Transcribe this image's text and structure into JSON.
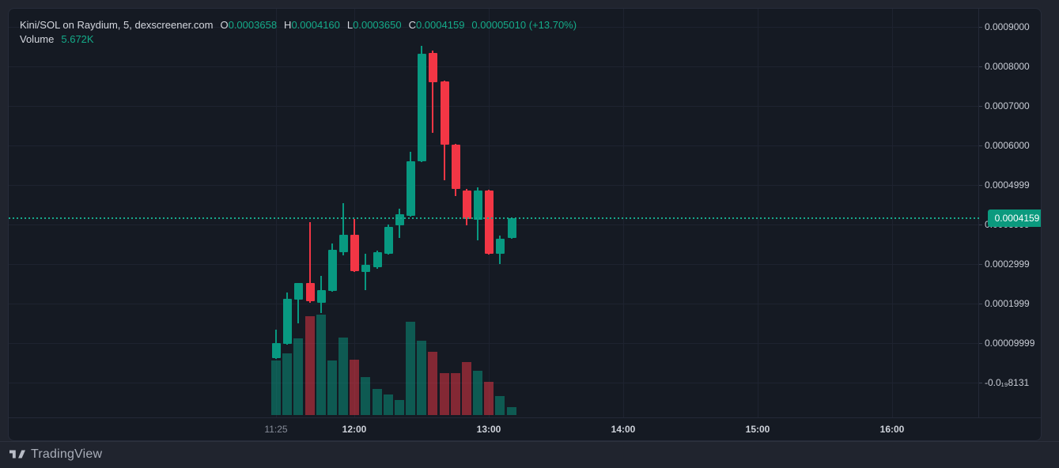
{
  "header": {
    "title": "Kini/SOL on Raydium, 5, dexscreener.com",
    "ohlc_items": [
      {
        "label": "O",
        "value": "0.0003658"
      },
      {
        "label": "H",
        "value": "0.0004160"
      },
      {
        "label": "L",
        "value": "0.0003650"
      },
      {
        "label": "C",
        "value": "0.0004159"
      }
    ],
    "change": "0.00005010 (+13.70%)",
    "volume_label": "Volume",
    "volume_value": "5.672K"
  },
  "footer": {
    "brand": "TradingView"
  },
  "colors": {
    "up": "#089981",
    "down": "#f23645",
    "volume_up": "rgba(8,153,129,0.5)",
    "volume_down": "rgba(242,54,69,0.5)",
    "accent_line": "#17a88b",
    "price_pill_bg": "#0b9a7e",
    "panel_bg": "#151a23",
    "page_bg": "#20242e",
    "grid": "#1e2330"
  },
  "chart_data": {
    "type": "candlestick",
    "pair": "Kini/SOL",
    "venue": "Raydium",
    "interval_minutes": 5,
    "source": "dexscreener.com",
    "current_price": 0.0004159,
    "current_price_text": "0.0004159",
    "hidden_tick_behind_pill": "0.0003999",
    "volume_unit": "K",
    "last_volume_text": "5.672K",
    "price_ticks": [
      {
        "text": "0.0009000",
        "value": 0.0009
      },
      {
        "text": "0.0008000",
        "value": 0.0008
      },
      {
        "text": "0.0007000",
        "value": 0.0007
      },
      {
        "text": "0.0006000",
        "value": 0.0006
      },
      {
        "text": "0.0004999",
        "value": 0.0004999
      },
      {
        "text": "0.0003999",
        "value": 0.0003999
      },
      {
        "text": "0.0002999",
        "value": 0.0002999
      },
      {
        "text": "0.0001999",
        "value": 0.0001999
      },
      {
        "text": "0.00009999",
        "value": 9.999e-05
      },
      {
        "text": "-0.0₁₉8131",
        "value": 0
      }
    ],
    "time_ticks": [
      {
        "text": "11:25",
        "major": false
      },
      {
        "text": "12:00",
        "major": true
      },
      {
        "text": "13:00",
        "major": true
      },
      {
        "text": "14:00",
        "major": true
      },
      {
        "text": "15:00",
        "major": true
      },
      {
        "text": "16:00",
        "major": true
      }
    ],
    "gridline_times": [
      "11:25",
      "12:00",
      "13:00",
      "14:00",
      "15:00",
      "16:00"
    ],
    "candles": [
      {
        "time": "11:25",
        "o": 6.2e-05,
        "h": 0.000134,
        "l": 6e-05,
        "c": 0.0001,
        "vol_k": 39.1
      },
      {
        "time": "11:30",
        "o": 9.8e-05,
        "h": 0.000228,
        "l": 9.6e-05,
        "c": 0.000212,
        "vol_k": 44.2
      },
      {
        "time": "11:35",
        "o": 0.00021,
        "h": 0.000252,
        "l": 0.00015,
        "c": 0.000252,
        "vol_k": 55.0
      },
      {
        "time": "11:40",
        "o": 0.000252,
        "h": 0.000407,
        "l": 0.000202,
        "c": 0.000206,
        "vol_k": 70.9
      },
      {
        "time": "11:45",
        "o": 0.000202,
        "h": 0.00027,
        "l": 0.000176,
        "c": 0.000234,
        "vol_k": 72.0
      },
      {
        "time": "11:50",
        "o": 0.000232,
        "h": 0.000352,
        "l": 0.00023,
        "c": 0.000336,
        "vol_k": 39.1
      },
      {
        "time": "11:55",
        "o": 0.00033,
        "h": 0.000455,
        "l": 0.000322,
        "c": 0.000374,
        "vol_k": 55.6
      },
      {
        "time": "12:00",
        "o": 0.000374,
        "h": 0.000414,
        "l": 0.00028,
        "c": 0.000282,
        "vol_k": 39.7
      },
      {
        "time": "12:05",
        "o": 0.00028,
        "h": 0.000326,
        "l": 0.000234,
        "c": 0.000298,
        "vol_k": 27.2
      },
      {
        "time": "12:10",
        "o": 0.000292,
        "h": 0.000334,
        "l": 0.000288,
        "c": 0.00033,
        "vol_k": 18.7
      },
      {
        "time": "12:15",
        "o": 0.000326,
        "h": 0.0004,
        "l": 0.000324,
        "c": 0.000394,
        "vol_k": 14.7
      },
      {
        "time": "12:20",
        "o": 0.000398,
        "h": 0.00044,
        "l": 0.000366,
        "c": 0.000426,
        "vol_k": 10.8
      },
      {
        "time": "12:25",
        "o": 0.000422,
        "h": 0.000584,
        "l": 0.00042,
        "c": 0.00056,
        "vol_k": 66.9
      },
      {
        "time": "12:30",
        "o": 0.00056,
        "h": 0.000852,
        "l": 0.000558,
        "c": 0.000832,
        "vol_k": 53.3
      },
      {
        "time": "12:35",
        "o": 0.000834,
        "h": 0.00084,
        "l": 0.000632,
        "c": 0.00076,
        "vol_k": 45.4
      },
      {
        "time": "12:40",
        "o": 0.000762,
        "h": 0.000764,
        "l": 0.000512,
        "c": 0.000602,
        "vol_k": 30.1
      },
      {
        "time": "12:45",
        "o": 0.000602,
        "h": 0.000604,
        "l": 0.000472,
        "c": 0.00049,
        "vol_k": 30.1
      },
      {
        "time": "12:50",
        "o": 0.000486,
        "h": 0.00049,
        "l": 0.000398,
        "c": 0.000414,
        "vol_k": 38.0
      },
      {
        "time": "12:55",
        "o": 0.000412,
        "h": 0.000494,
        "l": 0.00036,
        "c": 0.000486,
        "vol_k": 31.8
      },
      {
        "time": "13:00",
        "o": 0.000486,
        "h": 0.000488,
        "l": 0.000324,
        "c": 0.000326,
        "vol_k": 23.8
      },
      {
        "time": "13:05",
        "o": 0.000326,
        "h": 0.000372,
        "l": 0.0003,
        "c": 0.000364,
        "vol_k": 13.6
      },
      {
        "time": "13:10",
        "o": 0.0003658,
        "h": 0.000416,
        "l": 0.000365,
        "c": 0.0004159,
        "vol_k": 5.672
      }
    ]
  }
}
